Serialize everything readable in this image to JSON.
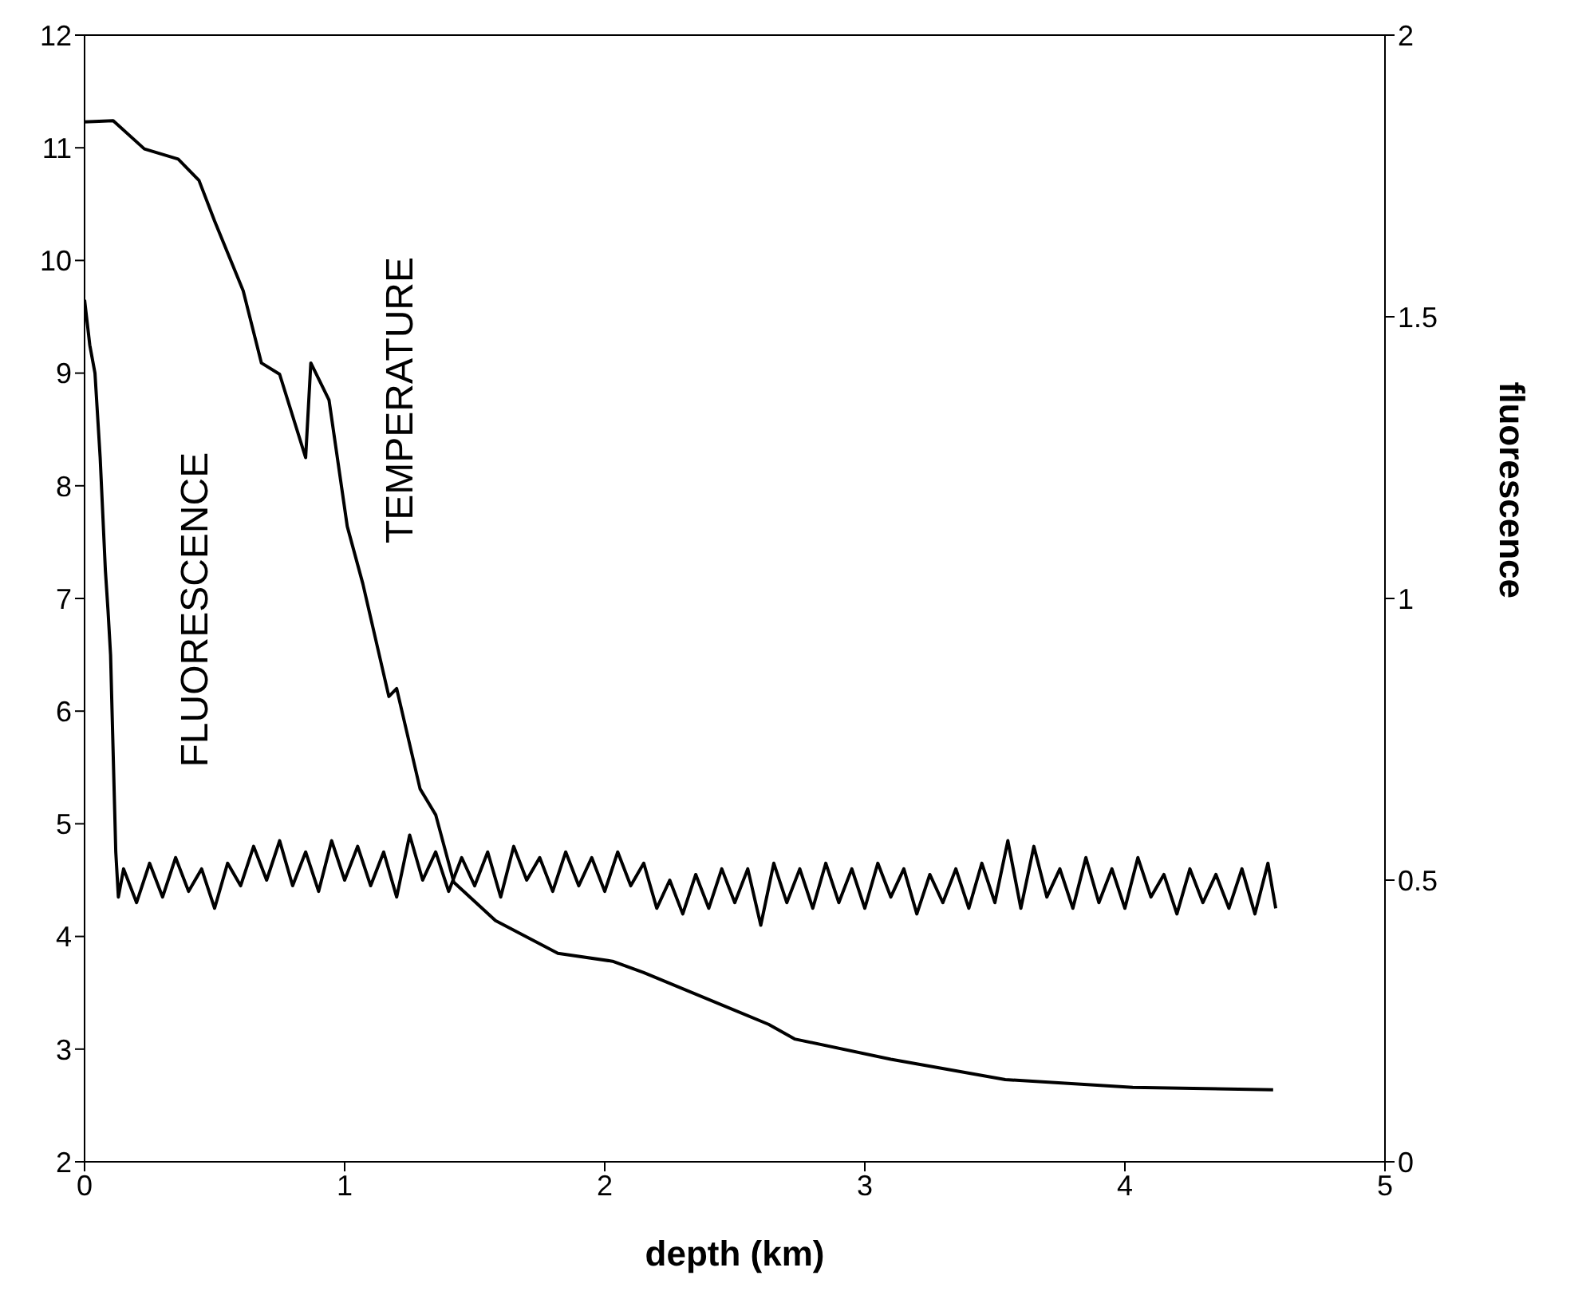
{
  "chart_data": {
    "type": "line",
    "xlabel": "depth (km)",
    "y2label": "fluorescence",
    "xlim": [
      0,
      5
    ],
    "xticks": [
      0,
      1,
      2,
      3,
      4,
      5
    ],
    "ylim": [
      2,
      12
    ],
    "yticks": [
      2,
      3,
      4,
      5,
      6,
      7,
      8,
      9,
      10,
      11,
      12
    ],
    "y2lim": [
      0,
      2
    ],
    "y2ticks": [
      0,
      0.5,
      1,
      1.5,
      2
    ],
    "legend": false,
    "marker": "none",
    "line_style": "solid",
    "series": [
      {
        "name": "TEMPERATURE",
        "color": "#000000",
        "x": [
          0,
          0.11,
          0.23,
          0.36,
          0.44,
          0.5,
          0.61,
          0.68,
          0.75,
          0.85,
          0.87,
          0.94,
          1.01,
          1.07,
          1.17,
          1.2,
          1.29,
          1.35,
          1.42,
          1.58,
          1.82,
          2.03,
          2.15,
          2.63,
          2.73,
          3.1,
          3.54,
          4.03,
          4.57
        ],
        "values": [
          11.23,
          11.24,
          10.99,
          10.9,
          10.71,
          10.35,
          9.73,
          9.09,
          8.99,
          8.25,
          9.09,
          8.76,
          7.64,
          7.13,
          6.13,
          6.2,
          5.31,
          5.08,
          4.48,
          4.14,
          3.85,
          3.78,
          3.68,
          3.22,
          3.09,
          2.91,
          2.73,
          2.66,
          2.64
        ]
      },
      {
        "name": "FLUORESCENCE",
        "color": "#000000",
        "axis": "y2",
        "x": [
          0,
          0.02,
          0.04,
          0.06,
          0.08,
          0.09,
          0.1,
          0.12,
          0.13,
          0.15,
          0.2,
          0.25,
          0.3,
          0.35,
          0.4,
          0.45,
          0.5,
          0.55,
          0.6,
          0.65,
          0.7,
          0.75,
          0.8,
          0.85,
          0.9,
          0.95,
          1.0,
          1.05,
          1.1,
          1.15,
          1.2,
          1.25,
          1.3,
          1.35,
          1.4,
          1.45,
          1.5,
          1.55,
          1.6,
          1.65,
          1.7,
          1.75,
          1.8,
          1.85,
          1.9,
          1.95,
          2.0,
          2.05,
          2.1,
          2.15,
          2.2,
          2.25,
          2.3,
          2.35,
          2.4,
          2.45,
          2.5,
          2.55,
          2.6,
          2.65,
          2.7,
          2.75,
          2.8,
          2.85,
          2.9,
          2.95,
          3.0,
          3.05,
          3.1,
          3.15,
          3.2,
          3.25,
          3.3,
          3.35,
          3.4,
          3.45,
          3.5,
          3.55,
          3.6,
          3.65,
          3.7,
          3.75,
          3.8,
          3.85,
          3.9,
          3.95,
          4.0,
          4.05,
          4.1,
          4.15,
          4.2,
          4.25,
          4.3,
          4.35,
          4.4,
          4.45,
          4.5,
          4.55,
          4.58
        ],
        "values": [
          1.53,
          1.45,
          1.4,
          1.25,
          1.05,
          0.98,
          0.9,
          0.55,
          0.47,
          0.52,
          0.46,
          0.53,
          0.47,
          0.54,
          0.48,
          0.52,
          0.45,
          0.53,
          0.49,
          0.56,
          0.5,
          0.57,
          0.49,
          0.55,
          0.48,
          0.57,
          0.5,
          0.56,
          0.49,
          0.55,
          0.47,
          0.58,
          0.5,
          0.55,
          0.48,
          0.54,
          0.49,
          0.55,
          0.47,
          0.56,
          0.5,
          0.54,
          0.48,
          0.55,
          0.49,
          0.54,
          0.48,
          0.55,
          0.49,
          0.53,
          0.45,
          0.5,
          0.44,
          0.51,
          0.45,
          0.52,
          0.46,
          0.52,
          0.42,
          0.53,
          0.46,
          0.52,
          0.45,
          0.53,
          0.46,
          0.52,
          0.45,
          0.53,
          0.47,
          0.52,
          0.44,
          0.51,
          0.46,
          0.52,
          0.45,
          0.53,
          0.46,
          0.57,
          0.45,
          0.56,
          0.47,
          0.52,
          0.45,
          0.54,
          0.46,
          0.52,
          0.45,
          0.54,
          0.47,
          0.51,
          0.44,
          0.52,
          0.46,
          0.51,
          0.45,
          0.52,
          0.44,
          0.53,
          0.45
        ]
      }
    ]
  }
}
